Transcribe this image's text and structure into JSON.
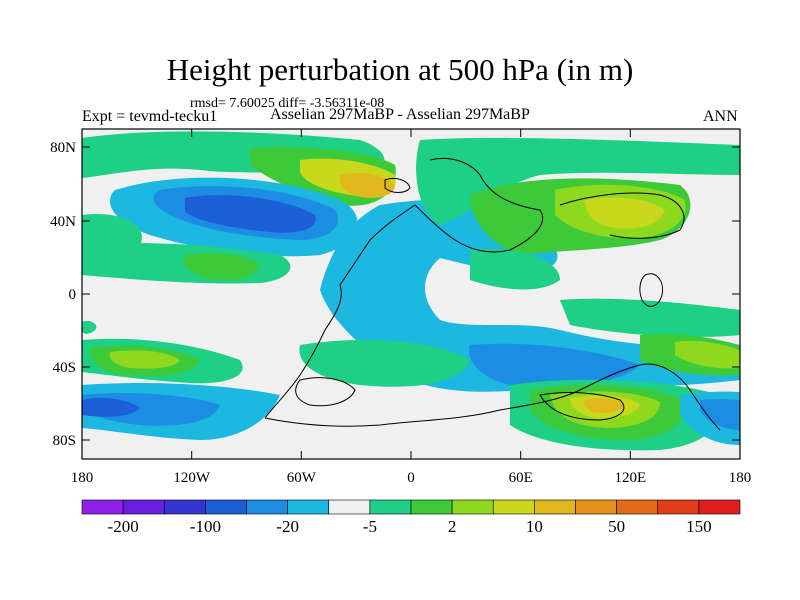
{
  "title": "Height perturbation at 500 hPa (in m)",
  "stats": "rmsd= 7.60025 diff= -3.56311e-08",
  "left_label": "Expt = tevmd-tecku1",
  "center_label": "Asselian 297MaBP - Asselian 297MaBP",
  "right_label": "ANN",
  "lat_ticks": [
    "80N",
    "40N",
    "0",
    "40S",
    "80S"
  ],
  "lon_ticks": [
    "180",
    "120W",
    "60W",
    "0",
    "60E",
    "120E",
    "180"
  ],
  "colorbar": {
    "labels": [
      "-200",
      "-100",
      "-20",
      "-5",
      "2",
      "10",
      "50",
      "150"
    ],
    "colors": [
      "#8f1fe9",
      "#6a1fe0",
      "#3434d2",
      "#1b5ed6",
      "#1d8de3",
      "#1cb8df",
      "#f0f0f0",
      "#1ecf86",
      "#3cc93a",
      "#8ed81e",
      "#c8d81c",
      "#e0b81c",
      "#e5921b",
      "#e26a1a",
      "#e03c19",
      "#e01e1e"
    ]
  },
  "field_colors": {
    "neg20": "#1b5ed6",
    "neg5": "#1d8de3",
    "neg2": "#1cb8df",
    "white": "#f0f0f0",
    "p2": "#1ecf86",
    "p10": "#3cc93a",
    "p20": "#8ed81e",
    "p50": "#c8d81c",
    "p100": "#e0b81c"
  }
}
